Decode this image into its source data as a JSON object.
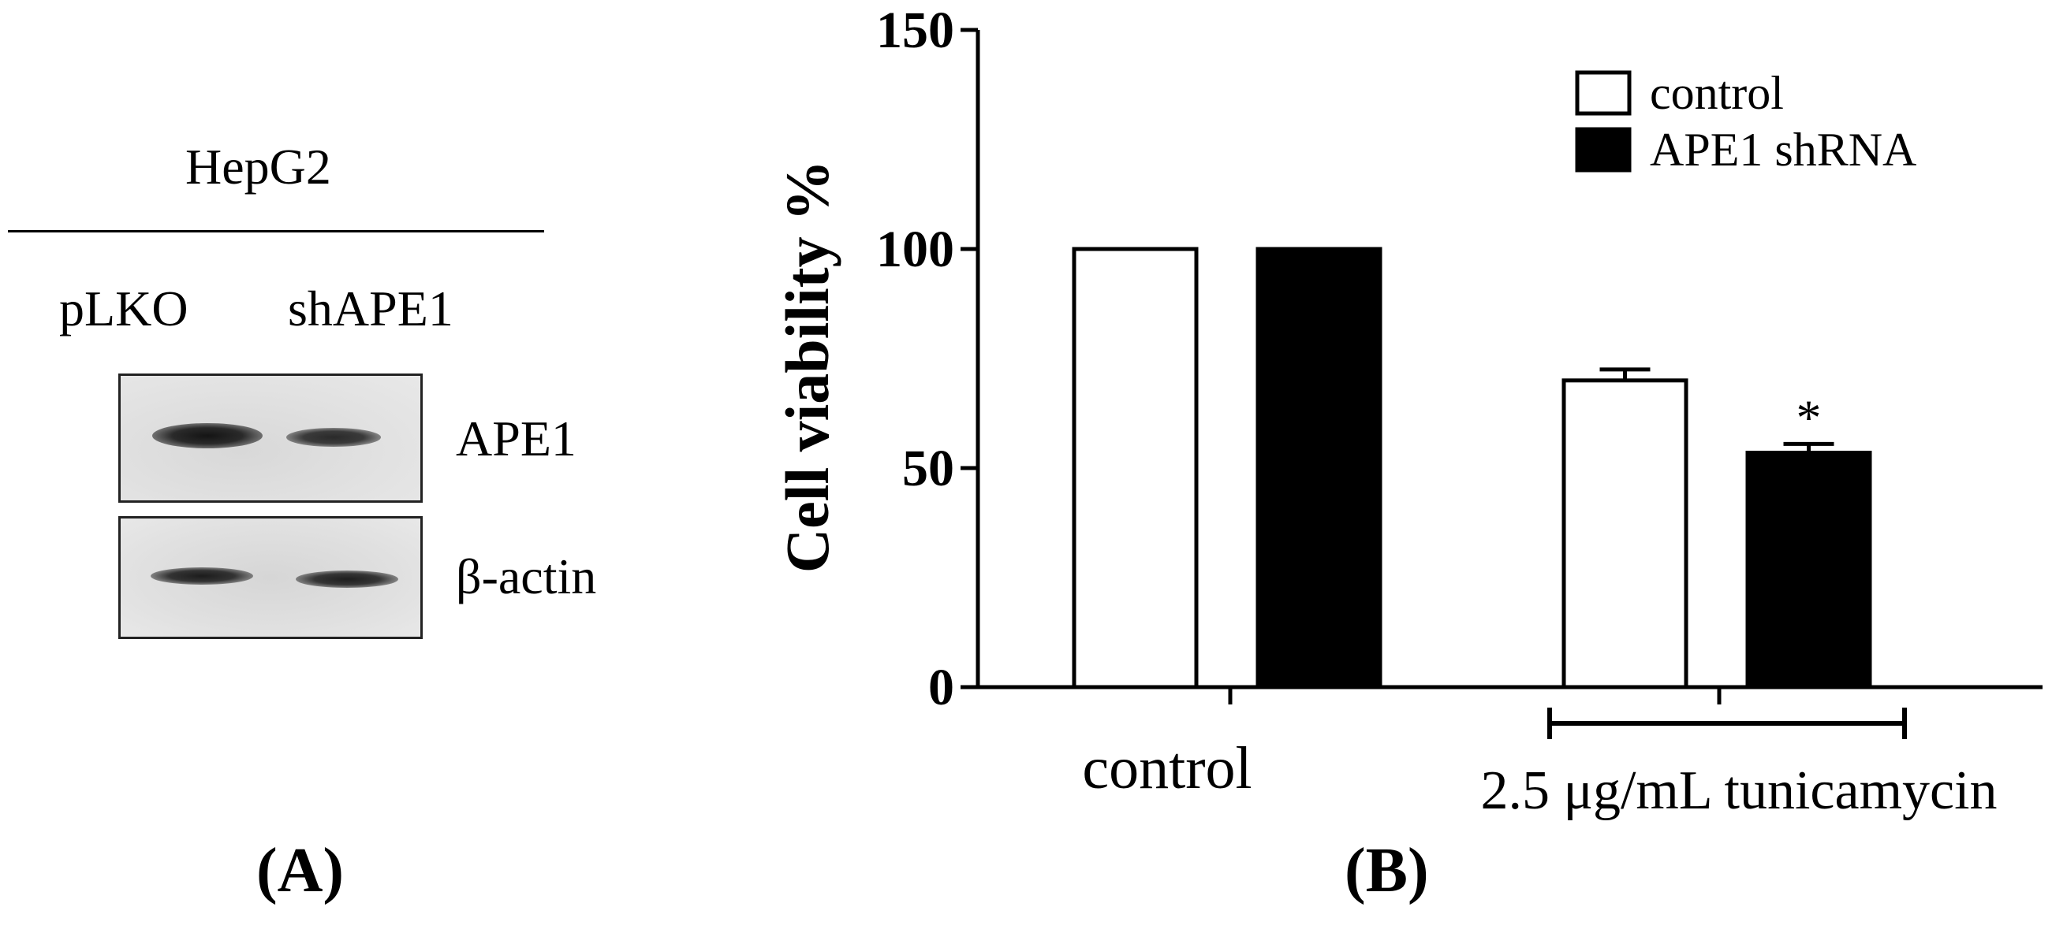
{
  "panel_a": {
    "cell_line": "HepG2",
    "lanes": [
      "pLKO",
      "shAPE1"
    ],
    "blots": [
      {
        "label": "APE1",
        "band_intensity": [
          1.0,
          0.55
        ]
      },
      {
        "label": "β-actin",
        "band_intensity": [
          0.8,
          0.8
        ]
      }
    ],
    "panel_label": "(A)"
  },
  "panel_b": {
    "panel_label": "(B)"
  },
  "chart_data": {
    "type": "bar",
    "ylabel": "Cell viability %",
    "ylim": [
      0,
      150
    ],
    "yticks": [
      "0",
      "50",
      "100",
      "150"
    ],
    "groups": [
      {
        "label": "control",
        "values": [
          100,
          100
        ],
        "errors": [
          0,
          0
        ],
        "annotations": [
          "",
          ""
        ]
      },
      {
        "label": "2.5 μg/mL tunicamycin",
        "values": [
          70,
          53.5
        ],
        "errors": [
          2.5,
          2
        ],
        "annotations": [
          "",
          "*"
        ]
      }
    ],
    "series": [
      {
        "name": "control",
        "color": "#ffffff"
      },
      {
        "name": "APE1 shRNA",
        "color": "#000000"
      }
    ],
    "legend": "top-right"
  }
}
